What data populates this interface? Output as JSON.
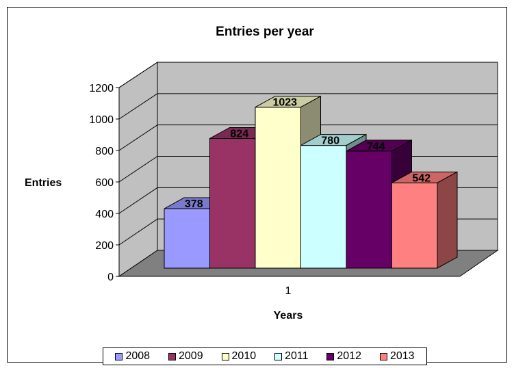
{
  "chart_data": {
    "type": "bar",
    "title": "Entries per year",
    "xlabel": "Years",
    "ylabel": "Entries",
    "categories": [
      "1"
    ],
    "series": [
      {
        "name": "2008",
        "values": [
          378
        ],
        "color": "#9999FF"
      },
      {
        "name": "2009",
        "values": [
          824
        ],
        "color": "#993366"
      },
      {
        "name": "2010",
        "values": [
          1023
        ],
        "color": "#FFFFCC"
      },
      {
        "name": "2011",
        "values": [
          780
        ],
        "color": "#CCFFFF"
      },
      {
        "name": "2012",
        "values": [
          744
        ],
        "color": "#660066"
      },
      {
        "name": "2013",
        "values": [
          542
        ],
        "color": "#FF8080"
      }
    ],
    "yticks": [
      "0",
      "200",
      "400",
      "600",
      "800",
      "1000",
      "1200"
    ],
    "ylim": [
      0,
      1200
    ],
    "grid": true,
    "legend_position": "bottom",
    "wall_color": "#C0C0C0",
    "floor_color": "#808080"
  }
}
